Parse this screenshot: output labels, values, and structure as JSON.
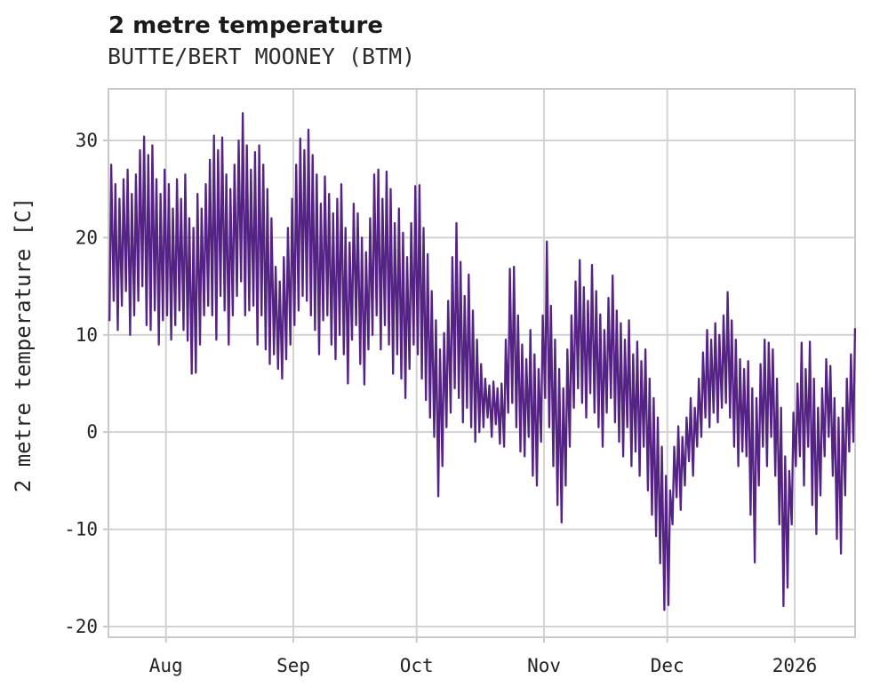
{
  "header": {
    "title": "2 metre temperature",
    "subtitle": "BUTTE/BERT MOONEY (BTM)"
  },
  "chart_data": {
    "type": "line",
    "title": "2 metre temperature",
    "subtitle": "BUTTE/BERT MOONEY (BTM)",
    "xlabel": "",
    "ylabel": "2 metre temperature [C]",
    "grid": true,
    "legend": "none",
    "ylim": [
      -21.1,
      35.3
    ],
    "yticks": [
      30,
      20,
      10,
      0,
      -10,
      -20
    ],
    "xticks": [
      {
        "label": "Aug",
        "day": 14
      },
      {
        "label": "Sep",
        "day": 45
      },
      {
        "label": "Oct",
        "day": 75
      },
      {
        "label": "Nov",
        "day": 106
      },
      {
        "label": "Dec",
        "day": 136
      },
      {
        "label": "2026",
        "day": 167
      }
    ],
    "x_total_days": 181.7,
    "colors": {
      "line": "#552384",
      "grid": "#d2d2d2",
      "spine": "#c9c9c9",
      "tick": "#c9c9c9",
      "tick_label": "#222222",
      "background": "#ffffff"
    },
    "series": [
      {
        "name": "2 metre temperature",
        "unit": "C",
        "daily_max": [
          27.5,
          25.5,
          24,
          26,
          27,
          24.5,
          26.5,
          29,
          30.4,
          28.5,
          29.5,
          26,
          24.5,
          27,
          25.5,
          23,
          26,
          24,
          26.5,
          22,
          21,
          24.5,
          23,
          25.5,
          28,
          30.5,
          29,
          30.3,
          26.5,
          25,
          27.5,
          30,
          32.8,
          29.5,
          27,
          28.8,
          29.5,
          27.5,
          25,
          22,
          17,
          15.5,
          18,
          21,
          24,
          27.5,
          30.2,
          29,
          31.1,
          28.5,
          26.5,
          23.5,
          26.3,
          24.5,
          22.5,
          24,
          25.5,
          21,
          19.5,
          23.5,
          22.5,
          20,
          18.5,
          22,
          26.5,
          27,
          24,
          26.8,
          25,
          21.5,
          23,
          20.5,
          18,
          21.5,
          25.3,
          25.4,
          21,
          18.3,
          14.5,
          11.5,
          8.5,
          10.2,
          13.5,
          18,
          21.5,
          17.5,
          14,
          16.2,
          12.5,
          9.5,
          7,
          5.5,
          4.8,
          5.2,
          4.5,
          5,
          9.5,
          16.8,
          17,
          12,
          9,
          7.5,
          10.5,
          8,
          6.5,
          12,
          19.6,
          13,
          9.5,
          6.5,
          4.5,
          8.5,
          12,
          15.5,
          17.7,
          14.9,
          13.5,
          17.2,
          14.5,
          12.1,
          10.5,
          13.8,
          16.1,
          12.5,
          11.2,
          9.5,
          11.5,
          8,
          9.3,
          7.3,
          8.5,
          5.5,
          3.5,
          1.5,
          -1.5,
          -4.5,
          -6,
          -1.5,
          0.6,
          -0.5,
          1.5,
          3.5,
          2.5,
          5.5,
          8.2,
          10.5,
          9.5,
          11.2,
          10,
          12,
          14.4,
          11.5,
          9.5,
          7.5,
          6.5,
          7.3,
          4.5,
          3.5,
          7,
          9.5,
          9.2,
          8.5,
          5.5,
          2.5,
          -2.5,
          -4,
          2,
          5,
          9.2,
          6.5,
          9.3,
          5.5,
          2.5,
          4.5,
          7.5,
          6.8,
          3.5,
          1.5,
          2.5,
          5.5,
          8,
          10.6
        ],
        "daily_min": [
          11.5,
          13.5,
          10.5,
          13,
          14.5,
          10,
          12,
          13.5,
          15,
          11,
          10.5,
          12.5,
          9,
          11.5,
          12,
          9.5,
          11,
          12.5,
          10.5,
          9.4,
          6,
          6.1,
          9,
          12,
          13,
          12,
          9.5,
          14,
          12.5,
          9,
          12,
          14,
          15.5,
          12,
          12.5,
          13,
          9,
          12,
          8.5,
          7,
          8,
          6.5,
          5.5,
          7.5,
          9,
          11,
          12.5,
          14,
          13.5,
          12,
          10.5,
          8,
          11.5,
          12,
          9,
          7.5,
          10,
          8,
          5,
          9.5,
          11,
          7,
          4.9,
          8.5,
          10,
          12,
          8.5,
          11,
          9,
          6,
          8,
          5.5,
          3.5,
          6.5,
          9,
          8,
          5.5,
          3.3,
          1.5,
          -0.5,
          -6.6,
          -3.5,
          0.5,
          2,
          4.5,
          3.5,
          1,
          2.5,
          0.5,
          -1,
          0,
          0.5,
          1.5,
          -0.5,
          0.8,
          -1.2,
          -1.5,
          2,
          3,
          0.5,
          -2,
          -2.5,
          -0.5,
          -4.5,
          -5.5,
          -1,
          3.5,
          0.5,
          -3.5,
          -7.5,
          -9.3,
          -5.5,
          -1.5,
          2.5,
          4.5,
          3,
          1.5,
          4,
          2,
          0.5,
          -1.5,
          2,
          3.5,
          1,
          -1,
          -2.5,
          0.5,
          -3.5,
          -2,
          -4.5,
          -1.5,
          -6,
          -8.5,
          -10.7,
          -13.5,
          -18.3,
          -17.8,
          -9.5,
          -6.7,
          -8,
          -5.5,
          -3,
          -4.5,
          -1.5,
          -0.5,
          1.5,
          0.5,
          2,
          1,
          2.5,
          3,
          1.5,
          -1.5,
          -3.5,
          -2,
          -2.5,
          -8.5,
          -13.4,
          -5.5,
          -1.5,
          -3.5,
          -0.5,
          -4.5,
          -9.5,
          -17.9,
          -16,
          -9.5,
          -3.5,
          -2.5,
          -5.5,
          -1.5,
          -7.5,
          -10.5,
          -6.5,
          -2.5,
          -0.5,
          -4.5,
          -11,
          -12.5,
          -6.5,
          -2,
          -1
        ]
      }
    ]
  }
}
